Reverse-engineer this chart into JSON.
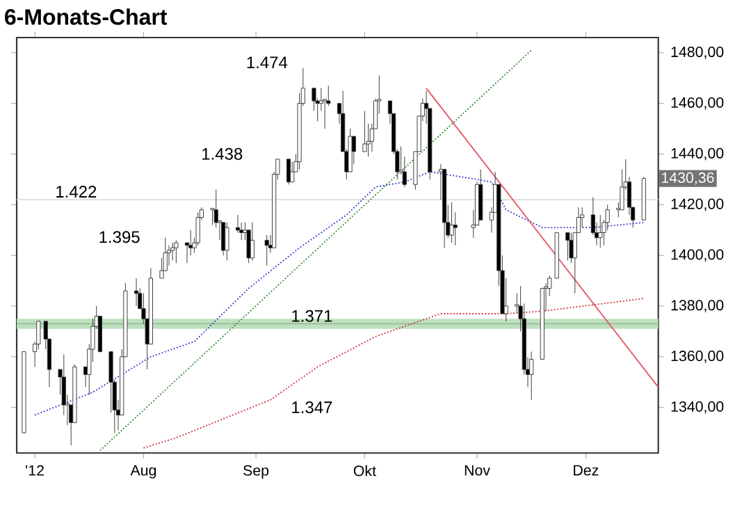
{
  "chart_data": {
    "type": "candlestick",
    "title": "6-Monats-Chart",
    "x": [
      "2012-06-29",
      "2012-07-02",
      "2012-07-03",
      "2012-07-05",
      "2012-07-06",
      "2012-07-09",
      "2012-07-10",
      "2012-07-11",
      "2012-07-12",
      "2012-07-13",
      "2012-07-16",
      "2012-07-17",
      "2012-07-18",
      "2012-07-19",
      "2012-07-20",
      "2012-07-23",
      "2012-07-24",
      "2012-07-25",
      "2012-07-26",
      "2012-07-27",
      "2012-07-30",
      "2012-07-31",
      "2012-08-01",
      "2012-08-02",
      "2012-08-03",
      "2012-08-06",
      "2012-08-07",
      "2012-08-08",
      "2012-08-09",
      "2012-08-10",
      "2012-08-13",
      "2012-08-14",
      "2012-08-15",
      "2012-08-16",
      "2012-08-17",
      "2012-08-20",
      "2012-08-21",
      "2012-08-22",
      "2012-08-23",
      "2012-08-24",
      "2012-08-27",
      "2012-08-28",
      "2012-08-29",
      "2012-08-30",
      "2012-08-31",
      "2012-09-04",
      "2012-09-05",
      "2012-09-06",
      "2012-09-07",
      "2012-09-10",
      "2012-09-11",
      "2012-09-12",
      "2012-09-13",
      "2012-09-14",
      "2012-09-17",
      "2012-09-18",
      "2012-09-19",
      "2012-09-20",
      "2012-09-21",
      "2012-09-24",
      "2012-09-25",
      "2012-09-26",
      "2012-09-27",
      "2012-09-28",
      "2012-10-01",
      "2012-10-02",
      "2012-10-03",
      "2012-10-04",
      "2012-10-05",
      "2012-10-08",
      "2012-10-09",
      "2012-10-10",
      "2012-10-11",
      "2012-10-12",
      "2012-10-15",
      "2012-10-16",
      "2012-10-17",
      "2012-10-18",
      "2012-10-19",
      "2012-10-22",
      "2012-10-23",
      "2012-10-24",
      "2012-10-25",
      "2012-10-26",
      "2012-10-31",
      "2012-11-01",
      "2012-11-02",
      "2012-11-05",
      "2012-11-06",
      "2012-11-07",
      "2012-11-08",
      "2012-11-09",
      "2012-11-12",
      "2012-11-13",
      "2012-11-14",
      "2012-11-15",
      "2012-11-16",
      "2012-11-19",
      "2012-11-20",
      "2012-11-21",
      "2012-11-23",
      "2012-11-26",
      "2012-11-27",
      "2012-11-28",
      "2012-11-29",
      "2012-11-30",
      "2012-12-03",
      "2012-12-04",
      "2012-12-05",
      "2012-12-06",
      "2012-12-07",
      "2012-12-10",
      "2012-12-11",
      "2012-12-12",
      "2012-12-13",
      "2012-12-14",
      "2012-12-17"
    ],
    "ohlc": [
      [
        1330,
        1362,
        1330,
        1362
      ],
      [
        1362,
        1366,
        1356,
        1365
      ],
      [
        1365,
        1374,
        1363,
        1374
      ],
      [
        1374,
        1374,
        1363,
        1367
      ],
      [
        1367,
        1367,
        1348,
        1355
      ],
      [
        1355,
        1355,
        1345,
        1352
      ],
      [
        1352,
        1361,
        1337,
        1341
      ],
      [
        1341,
        1345,
        1333,
        1341
      ],
      [
        1341,
        1341,
        1325,
        1334
      ],
      [
        1334,
        1357,
        1334,
        1356
      ],
      [
        1356,
        1356,
        1348,
        1353
      ],
      [
        1353,
        1365,
        1345,
        1363
      ],
      [
        1363,
        1375,
        1358,
        1372
      ],
      [
        1372,
        1380,
        1371,
        1376
      ],
      [
        1376,
        1376,
        1362,
        1362
      ],
      [
        1362,
        1362,
        1338,
        1350
      ],
      [
        1350,
        1351,
        1330,
        1339
      ],
      [
        1339,
        1343,
        1331,
        1337
      ],
      [
        1337,
        1363,
        1337,
        1360
      ],
      [
        1360,
        1389,
        1360,
        1386
      ],
      [
        1386,
        1391,
        1380,
        1385
      ],
      [
        1385,
        1387,
        1379,
        1379
      ],
      [
        1379,
        1385,
        1373,
        1375
      ],
      [
        1375,
        1375,
        1355,
        1365
      ],
      [
        1365,
        1395,
        1365,
        1391
      ],
      [
        1391,
        1399,
        1391,
        1394
      ],
      [
        1394,
        1407,
        1394,
        1401
      ],
      [
        1401,
        1404,
        1396,
        1402
      ],
      [
        1402,
        1405,
        1398,
        1403
      ],
      [
        1403,
        1406,
        1397,
        1405
      ],
      [
        1405,
        1405,
        1397,
        1404
      ],
      [
        1404,
        1410,
        1400,
        1403
      ],
      [
        1403,
        1407,
        1401,
        1405
      ],
      [
        1405,
        1417,
        1404,
        1415
      ],
      [
        1415,
        1419,
        1414,
        1418
      ],
      [
        1418,
        1418,
        1412,
        1418
      ],
      [
        1418,
        1426,
        1411,
        1413
      ],
      [
        1413,
        1414,
        1406,
        1413
      ],
      [
        1413,
        1413,
        1400,
        1402
      ],
      [
        1402,
        1413,
        1398,
        1411
      ],
      [
        1411,
        1416,
        1409,
        1410
      ],
      [
        1410,
        1413,
        1406,
        1409
      ],
      [
        1409,
        1413,
        1406,
        1410
      ],
      [
        1410,
        1410,
        1397,
        1399
      ],
      [
        1399,
        1413,
        1398,
        1406
      ],
      [
        1406,
        1408,
        1396,
        1404
      ],
      [
        1404,
        1408,
        1401,
        1403
      ],
      [
        1403,
        1433,
        1403,
        1432
      ],
      [
        1432,
        1438,
        1430,
        1438
      ],
      [
        1438,
        1438,
        1428,
        1429
      ],
      [
        1429,
        1437,
        1429,
        1433
      ],
      [
        1433,
        1440,
        1433,
        1437
      ],
      [
        1437,
        1464,
        1434,
        1460
      ],
      [
        1460,
        1474,
        1459,
        1466
      ],
      [
        1466,
        1466,
        1457,
        1461
      ],
      [
        1461,
        1462,
        1453,
        1460
      ],
      [
        1460,
        1466,
        1457,
        1461
      ],
      [
        1461,
        1461,
        1450,
        1461
      ],
      [
        1461,
        1467,
        1459,
        1460
      ],
      [
        1460,
        1460,
        1452,
        1456
      ],
      [
        1456,
        1465,
        1441,
        1441
      ],
      [
        1441,
        1442,
        1430,
        1433
      ],
      [
        1433,
        1450,
        1433,
        1447
      ],
      [
        1447,
        1447,
        1436,
        1441
      ],
      [
        1441,
        1457,
        1441,
        1444
      ],
      [
        1444,
        1452,
        1439,
        1445
      ],
      [
        1445,
        1452,
        1441,
        1450
      ],
      [
        1450,
        1462,
        1450,
        1461
      ],
      [
        1461,
        1471,
        1456,
        1461
      ],
      [
        1461,
        1461,
        1452,
        1456
      ],
      [
        1456,
        1456,
        1440,
        1441
      ],
      [
        1441,
        1442,
        1430,
        1433
      ],
      [
        1433,
        1443,
        1432,
        1433
      ],
      [
        1433,
        1439,
        1427,
        1428
      ],
      [
        1428,
        1441,
        1426,
        1441
      ],
      [
        1441,
        1455,
        1441,
        1455
      ],
      [
        1455,
        1462,
        1453,
        1460
      ],
      [
        1460,
        1465,
        1452,
        1458
      ],
      [
        1458,
        1458,
        1430,
        1433
      ],
      [
        1433,
        1436,
        1422,
        1434
      ],
      [
        1434,
        1434,
        1403,
        1413
      ],
      [
        1413,
        1420,
        1407,
        1408
      ],
      [
        1408,
        1421,
        1405,
        1412
      ],
      [
        1412,
        1417,
        1404,
        1411
      ],
      [
        1411,
        1418,
        1407,
        1412
      ],
      [
        1412,
        1429,
        1412,
        1428
      ],
      [
        1428,
        1434,
        1414,
        1414
      ],
      [
        1414,
        1419,
        1409,
        1417
      ],
      [
        1417,
        1433,
        1417,
        1428
      ],
      [
        1428,
        1428,
        1388,
        1394
      ],
      [
        1394,
        1400,
        1377,
        1377
      ],
      [
        1377,
        1391,
        1374,
        1380
      ],
      [
        1380,
        1385,
        1377,
        1380
      ],
      [
        1380,
        1388,
        1370,
        1375
      ],
      [
        1375,
        1381,
        1353,
        1355
      ],
      [
        1355,
        1360,
        1348,
        1353
      ],
      [
        1353,
        1362,
        1343,
        1359
      ],
      [
        1359,
        1387,
        1359,
        1387
      ],
      [
        1387,
        1389,
        1378,
        1387
      ],
      [
        1387,
        1392,
        1384,
        1391
      ],
      [
        1391,
        1409,
        1391,
        1409
      ],
      [
        1409,
        1409,
        1398,
        1406
      ],
      [
        1406,
        1409,
        1397,
        1399
      ],
      [
        1399,
        1409,
        1385,
        1409
      ],
      [
        1409,
        1419,
        1409,
        1415
      ],
      [
        1415,
        1419,
        1411,
        1416
      ],
      [
        1416,
        1423,
        1408,
        1409
      ],
      [
        1409,
        1413,
        1404,
        1407
      ],
      [
        1407,
        1416,
        1403,
        1409
      ],
      [
        1409,
        1414,
        1404,
        1413
      ],
      [
        1413,
        1420,
        1410,
        1418
      ],
      [
        1418,
        1421,
        1415,
        1418
      ],
      [
        1418,
        1434,
        1418,
        1427
      ],
      [
        1427,
        1438,
        1426,
        1429
      ],
      [
        1429,
        1431,
        1416,
        1419
      ],
      [
        1419,
        1419,
        1411,
        1414
      ],
      [
        1414,
        1431,
        1414,
        1430.36
      ]
    ],
    "series": [
      {
        "type": "line",
        "color": "#3a3acc",
        "line_style": "dotted",
        "x": [
          "2012-07-02",
          "2012-07-18",
          "2012-08-03",
          "2012-08-15",
          "2012-08-30",
          "2012-09-13",
          "2012-09-26",
          "2012-10-04",
          "2012-10-12",
          "2012-10-19",
          "2012-11-01",
          "2012-11-05",
          "2012-11-09",
          "2012-11-19",
          "2012-12-03",
          "2012-12-17"
        ],
        "values": [
          1337,
          1346,
          1360,
          1366,
          1387,
          1403,
          1416,
          1427,
          1429,
          1433,
          1430,
          1429,
          1418,
          1411,
          1411,
          1413
        ]
      },
      {
        "type": "line",
        "color": "#d42a3a",
        "line_style": "dotted",
        "x": [
          "2012-08-01",
          "2012-08-10",
          "2012-09-05",
          "2012-09-18",
          "2012-10-04",
          "2012-10-12",
          "2012-10-22",
          "2012-11-09",
          "2012-11-19",
          "2012-12-17"
        ],
        "values": [
          1324,
          1328,
          1343,
          1356,
          1368,
          1372,
          1377,
          1377,
          1378,
          1383
        ]
      },
      {
        "type": "line",
        "color": "#2e8b2e",
        "line_style": "dotted",
        "x": [
          "2012-07-20",
          "2012-11-16"
        ],
        "values": [
          1323,
          1481
        ]
      },
      {
        "type": "line",
        "color": "#e05a6a",
        "line_style": "solid",
        "x": [
          "2012-10-18",
          "2012-12-21"
        ],
        "values": [
          1466,
          1348
        ]
      }
    ],
    "bands": [
      {
        "axis": "y",
        "from": 1371,
        "to": 1375,
        "color": "#bfe0bf"
      }
    ],
    "ref_lines": [
      {
        "axis": "y",
        "value": 1422,
        "label": "1.422",
        "color": "#dcdcdc"
      },
      {
        "axis": "y",
        "value": 1373,
        "color": "#8fb88f"
      }
    ],
    "annotations": [
      "1.474",
      "1.438",
      "1.395",
      "1.371",
      "1.347",
      "1430,36"
    ],
    "xlim": [
      "2012-06-27",
      "2012-12-21"
    ],
    "xticks": [
      {
        "value": "2012-07-02",
        "label": "'12"
      },
      {
        "value": "2012-08-01",
        "label": "Aug"
      },
      {
        "value": "2012-09-01",
        "label": "Sep"
      },
      {
        "value": "2012-10-01",
        "label": "Okt"
      },
      {
        "value": "2012-11-01",
        "label": "Nov"
      },
      {
        "value": "2012-12-01",
        "label": "Dez"
      }
    ],
    "ylim": [
      1322,
      1486
    ],
    "yticks": [
      {
        "value": 1340,
        "label": "1340,00"
      },
      {
        "value": 1360,
        "label": "1360,00"
      },
      {
        "value": 1380,
        "label": "1380,00"
      },
      {
        "value": 1400,
        "label": "1400,00"
      },
      {
        "value": 1420,
        "label": "1420,00"
      },
      {
        "value": 1440,
        "label": "1440,00"
      },
      {
        "value": 1460,
        "label": "1460,00"
      },
      {
        "value": 1480,
        "label": "1480,00"
      }
    ]
  }
}
